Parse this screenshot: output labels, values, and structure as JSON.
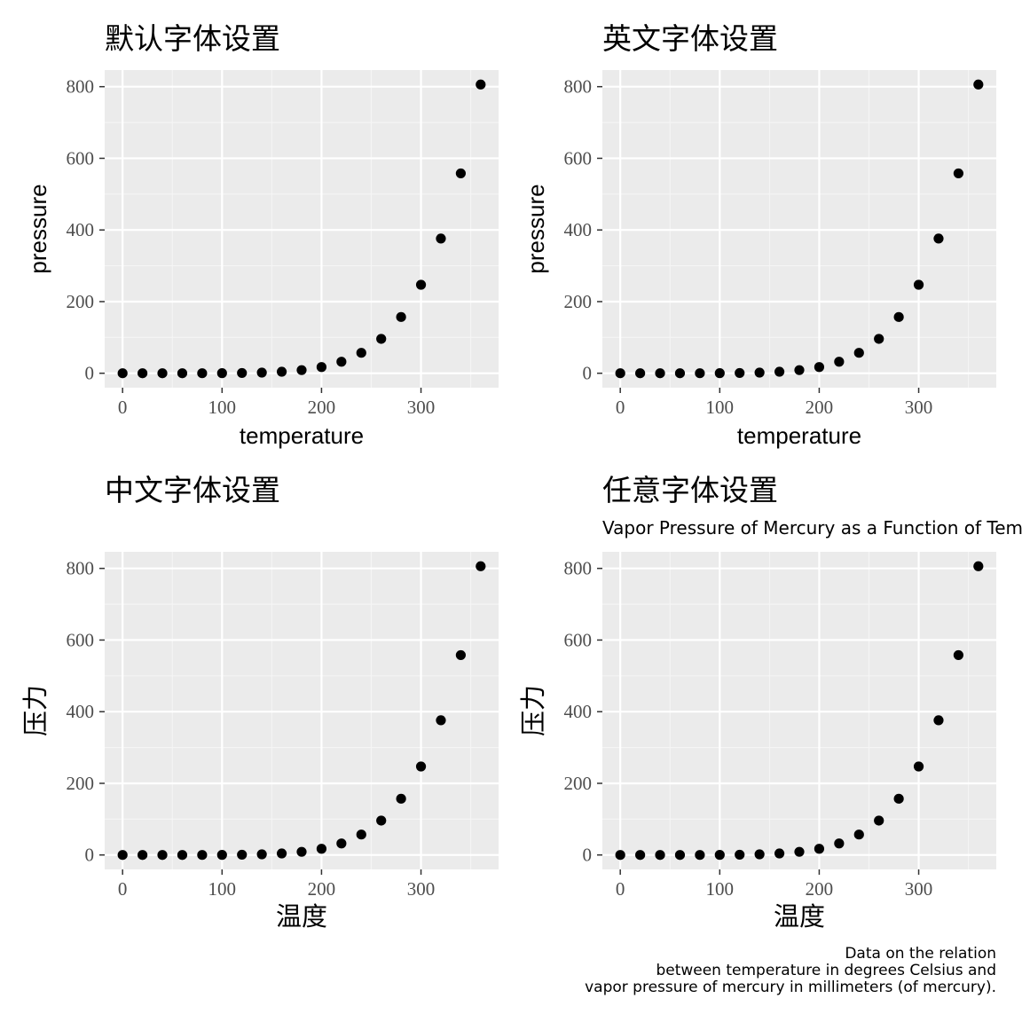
{
  "colors": {
    "panel_background": "#ebebeb",
    "grid_major": "#ffffff",
    "grid_minor": "#f5f5f5",
    "point": "#000000",
    "tick_text": "#4d4d4d"
  },
  "chart_data": [
    {
      "type": "scatter",
      "title": "默认字体设置",
      "subtitle": "",
      "xlabel": "temperature",
      "ylabel": "pressure",
      "x": [
        0,
        20,
        40,
        60,
        80,
        100,
        120,
        140,
        160,
        180,
        200,
        220,
        240,
        260,
        280,
        300,
        320,
        340,
        360
      ],
      "y": [
        0.0002,
        0.0012,
        0.006,
        0.03,
        0.09,
        0.27,
        0.75,
        1.85,
        4.2,
        8.8,
        17.3,
        32.1,
        57,
        96,
        157,
        247,
        376,
        558,
        806
      ],
      "xlim": [
        -18,
        378
      ],
      "ylim": [
        -40.3,
        846.3
      ],
      "x_ticks": [
        0,
        100,
        200,
        300
      ],
      "y_ticks": [
        0,
        200,
        400,
        600,
        800
      ],
      "grid": true,
      "caption": ""
    },
    {
      "type": "scatter",
      "title": "英文字体设置",
      "subtitle": "",
      "xlabel": "temperature",
      "ylabel": "pressure",
      "x": [
        0,
        20,
        40,
        60,
        80,
        100,
        120,
        140,
        160,
        180,
        200,
        220,
        240,
        260,
        280,
        300,
        320,
        340,
        360
      ],
      "y": [
        0.0002,
        0.0012,
        0.006,
        0.03,
        0.09,
        0.27,
        0.75,
        1.85,
        4.2,
        8.8,
        17.3,
        32.1,
        57,
        96,
        157,
        247,
        376,
        558,
        806
      ],
      "xlim": [
        -18,
        378
      ],
      "ylim": [
        -40.3,
        846.3
      ],
      "x_ticks": [
        0,
        100,
        200,
        300
      ],
      "y_ticks": [
        0,
        200,
        400,
        600,
        800
      ],
      "grid": true,
      "caption": ""
    },
    {
      "type": "scatter",
      "title": "中文字体设置",
      "subtitle": "",
      "xlabel": "温度",
      "ylabel": "压力",
      "x": [
        0,
        20,
        40,
        60,
        80,
        100,
        120,
        140,
        160,
        180,
        200,
        220,
        240,
        260,
        280,
        300,
        320,
        340,
        360
      ],
      "y": [
        0.0002,
        0.0012,
        0.006,
        0.03,
        0.09,
        0.27,
        0.75,
        1.85,
        4.2,
        8.8,
        17.3,
        32.1,
        57,
        96,
        157,
        247,
        376,
        558,
        806
      ],
      "xlim": [
        -18,
        378
      ],
      "ylim": [
        -40.3,
        846.3
      ],
      "x_ticks": [
        0,
        100,
        200,
        300
      ],
      "y_ticks": [
        0,
        200,
        400,
        600,
        800
      ],
      "grid": true,
      "caption": ""
    },
    {
      "type": "scatter",
      "title": "任意字体设置",
      "subtitle": "Vapor Pressure of Mercury as a Function of Tem",
      "xlabel": "温度",
      "ylabel": "压力",
      "x": [
        0,
        20,
        40,
        60,
        80,
        100,
        120,
        140,
        160,
        180,
        200,
        220,
        240,
        260,
        280,
        300,
        320,
        340,
        360
      ],
      "y": [
        0.0002,
        0.0012,
        0.006,
        0.03,
        0.09,
        0.27,
        0.75,
        1.85,
        4.2,
        8.8,
        17.3,
        32.1,
        57,
        96,
        157,
        247,
        376,
        558,
        806
      ],
      "xlim": [
        -18,
        378
      ],
      "ylim": [
        -40.3,
        846.3
      ],
      "x_ticks": [
        0,
        100,
        200,
        300
      ],
      "y_ticks": [
        0,
        200,
        400,
        600,
        800
      ],
      "grid": true,
      "caption": [
        "Data on the relation",
        "between temperature in degrees Celsius and",
        "vapor pressure of mercury in millimeters (of mercury)."
      ]
    }
  ]
}
